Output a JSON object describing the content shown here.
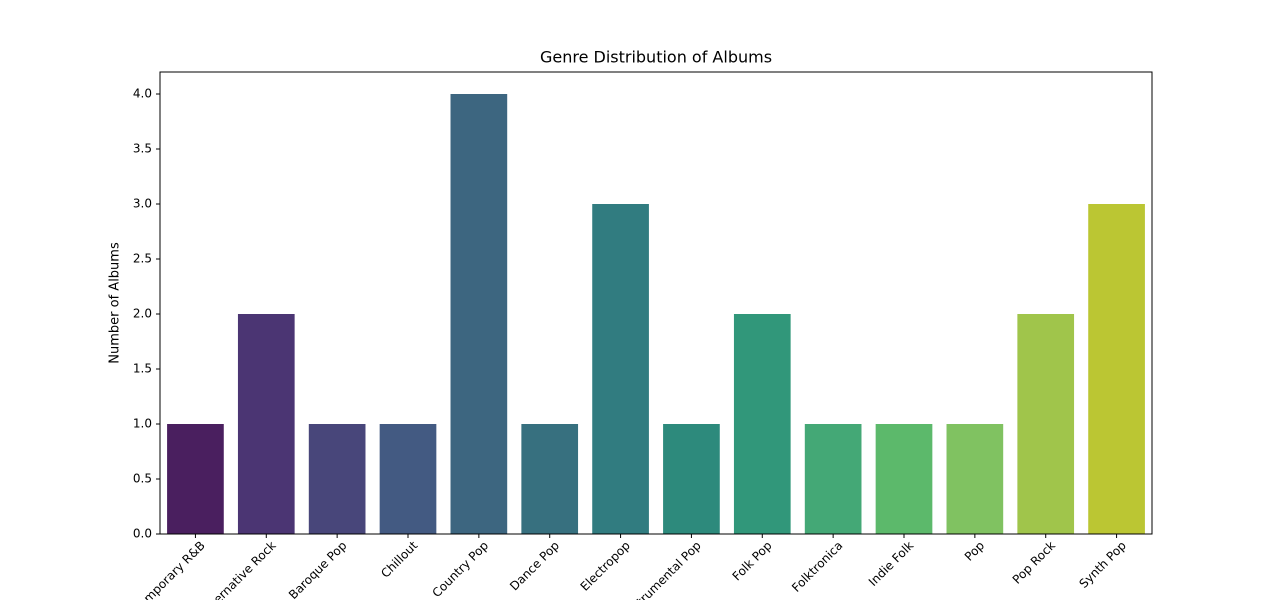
{
  "chart_data": {
    "type": "bar",
    "title": "Genre Distribution of Albums",
    "ylabel": "Number of Albums",
    "categories": [
      "Contemporary R&B",
      "Alternative Rock",
      "Baroque Pop",
      "Chillout",
      "Country Pop",
      "Dance Pop",
      "Electropop",
      "Instrumental Pop",
      "Folk Pop",
      "Folktronica",
      "Indie Folk",
      "Pop",
      "Pop Rock",
      "Synth Pop"
    ],
    "values": [
      1,
      2,
      1,
      1,
      4,
      1,
      3,
      1,
      2,
      1,
      1,
      1,
      2,
      3
    ],
    "colors": [
      "#4a1f5f",
      "#4b3573",
      "#48467a",
      "#435a82",
      "#3d6680",
      "#37707f",
      "#317c80",
      "#2d8a7c",
      "#31977a",
      "#44a876",
      "#5cb96b",
      "#80c261",
      "#a0c54b",
      "#bbc633"
    ],
    "ylim": [
      0,
      4.2
    ],
    "yticks": [
      {
        "value": 0,
        "label": "0.0"
      },
      {
        "value": 0.5,
        "label": "0.5"
      },
      {
        "value": 1,
        "label": "1.0"
      },
      {
        "value": 1.5,
        "label": "1.5"
      },
      {
        "value": 2,
        "label": "2.0"
      },
      {
        "value": 2.5,
        "label": "2.5"
      },
      {
        "value": 3,
        "label": "3.0"
      },
      {
        "value": 3.5,
        "label": "3.5"
      },
      {
        "value": 4,
        "label": "4.0"
      }
    ],
    "grid": false
  }
}
